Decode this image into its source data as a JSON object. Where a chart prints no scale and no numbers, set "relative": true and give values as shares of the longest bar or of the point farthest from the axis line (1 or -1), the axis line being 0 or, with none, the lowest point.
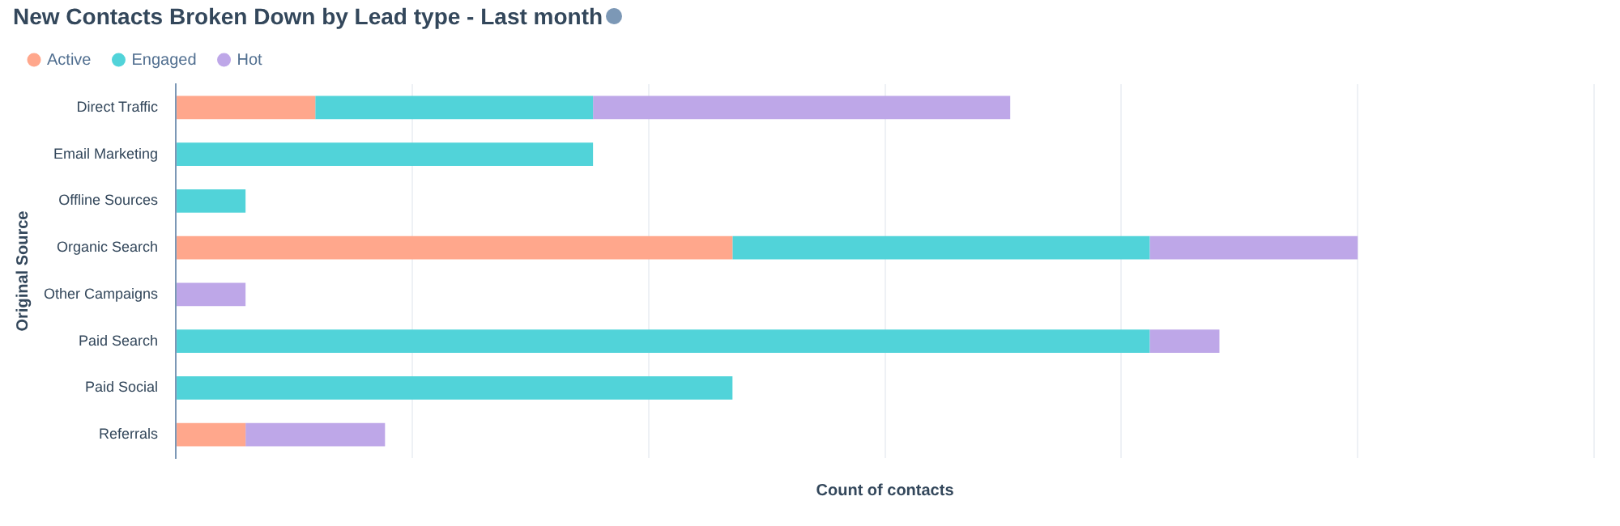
{
  "chart_data": {
    "type": "bar",
    "title": "New Contacts Broken Down by Lead type - Last month",
    "ylabel": "Original Source",
    "xlabel": "Count of contacts",
    "orientation": "horizontal",
    "stacked": true,
    "relative": true,
    "grid": "x",
    "legend": "top left",
    "categories": [
      "Direct Traffic",
      "Email Marketing",
      "Offline Sources",
      "Organic Search",
      "Other Campaigns",
      "Paid Search",
      "Paid Social",
      "Referrals"
    ],
    "series": [
      {
        "name": "Active",
        "color": "#ffa78c",
        "values": [
          0.118,
          null,
          null,
          0.471,
          null,
          null,
          null,
          0.059
        ]
      },
      {
        "name": "Engaged",
        "color": "#51d3d9",
        "values": [
          0.235,
          0.353,
          0.059,
          0.353,
          null,
          0.824,
          0.471,
          null
        ]
      },
      {
        "name": "Hot",
        "color": "#bea7e8",
        "values": [
          0.353,
          null,
          null,
          0.176,
          0.059,
          0.059,
          null,
          0.118
        ]
      }
    ]
  }
}
